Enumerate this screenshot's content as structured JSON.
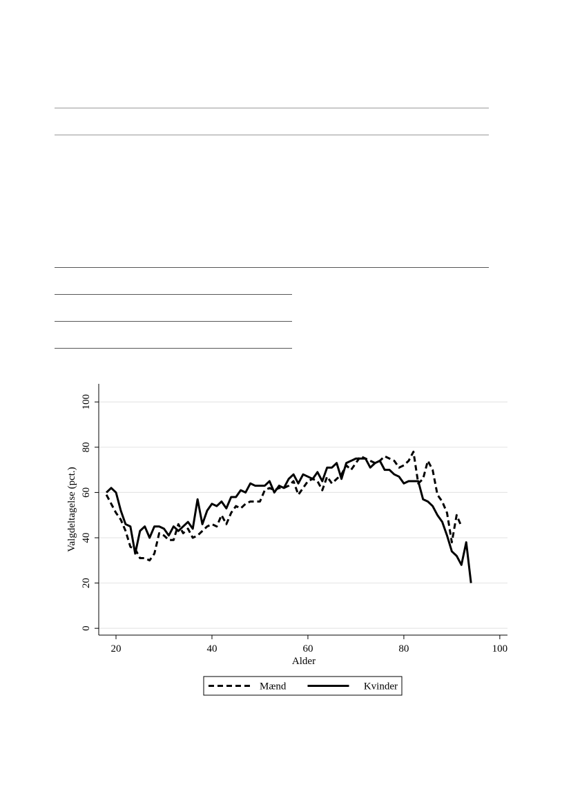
{
  "chart_data": {
    "type": "line",
    "xlabel": "Alder",
    "ylabel": "Valgdeltagelse (pct.)",
    "x": [
      18,
      19,
      20,
      21,
      22,
      23,
      24,
      25,
      26,
      27,
      28,
      29,
      30,
      31,
      32,
      33,
      34,
      35,
      36,
      37,
      38,
      39,
      40,
      41,
      42,
      43,
      44,
      45,
      46,
      47,
      48,
      49,
      50,
      51,
      52,
      53,
      54,
      55,
      56,
      57,
      58,
      59,
      60,
      61,
      62,
      63,
      64,
      65,
      66,
      67,
      68,
      69,
      70,
      71,
      72,
      73,
      74,
      75,
      76,
      77,
      78,
      79,
      80,
      81,
      82,
      83,
      84,
      85,
      86,
      87,
      88,
      89,
      90,
      91,
      92,
      93,
      94
    ],
    "series": [
      {
        "name": "Mænd",
        "color": "#000000",
        "style": "dashed",
        "values": [
          59,
          55,
          51,
          48,
          43,
          36,
          35,
          31,
          31,
          30,
          33,
          42,
          41,
          39,
          39,
          46,
          42,
          44,
          40,
          41,
          43,
          45,
          46,
          45,
          50,
          46,
          51,
          54,
          53,
          55,
          56,
          56,
          56,
          61,
          62,
          61,
          62,
          62,
          63,
          65,
          59,
          62,
          65,
          66,
          65,
          61,
          67,
          64,
          66,
          68,
          72,
          70,
          73,
          76,
          75,
          74,
          73,
          74,
          76,
          75,
          74,
          71,
          72,
          74,
          78,
          64,
          66,
          74,
          70,
          59,
          56,
          51,
          38,
          50,
          45,
          null,
          null
        ]
      },
      {
        "name": "Kvinder",
        "color": "#000000",
        "style": "solid",
        "values": [
          60,
          62,
          60,
          52,
          46,
          45,
          33,
          43,
          45,
          40,
          45,
          45,
          44,
          41,
          45,
          43,
          45,
          47,
          44,
          57,
          46,
          52,
          55,
          54,
          56,
          53,
          58,
          58,
          61,
          60,
          64,
          63,
          63,
          63,
          65,
          60,
          63,
          62,
          66,
          68,
          64,
          68,
          67,
          66,
          69,
          65,
          71,
          71,
          73,
          66,
          73,
          74,
          75,
          75,
          75,
          71,
          73,
          74,
          70,
          70,
          68,
          67,
          64,
          65,
          65,
          65,
          57,
          56,
          54,
          50,
          47,
          41,
          34,
          32,
          28,
          38,
          20
        ]
      }
    ],
    "xlim": [
      16.4,
      101.6
    ],
    "ylim": [
      -3,
      108
    ],
    "xticks": [
      20,
      40,
      60,
      80,
      100
    ],
    "yticks": [
      0,
      20,
      40,
      60,
      80,
      100
    ],
    "grid": true,
    "legend": "bottom"
  }
}
